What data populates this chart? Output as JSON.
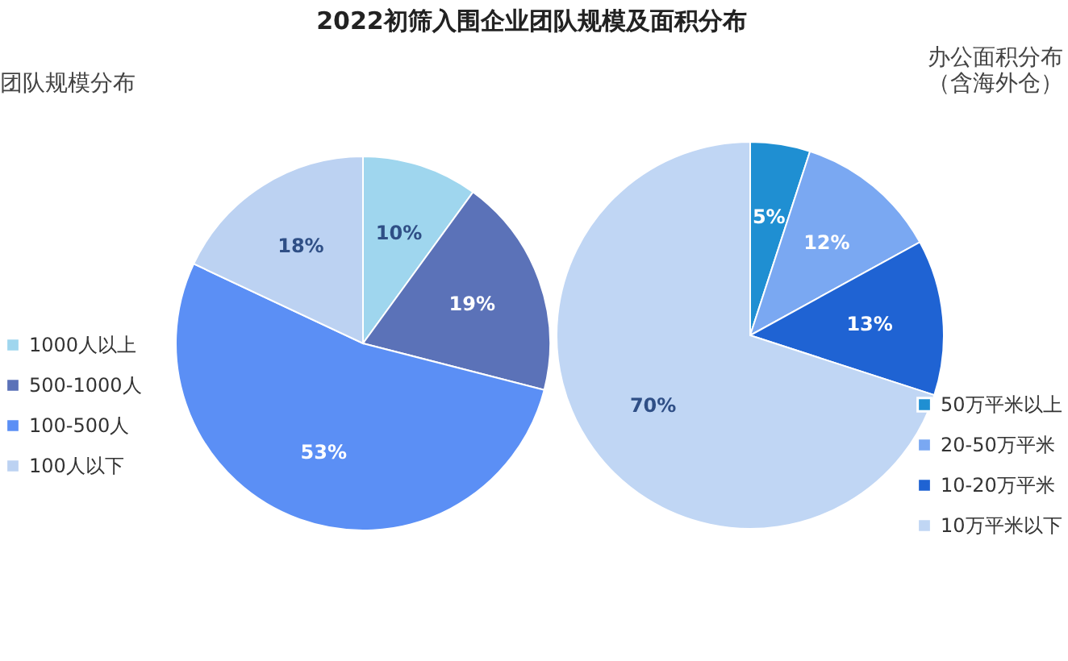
{
  "chart_data": [
    {
      "type": "pie",
      "title": "2022初筛入围企业团队规模及面积分布",
      "subtitle": "团队规模分布",
      "categories": [
        "1000人以上",
        "500-1000人",
        "100-500人",
        "100人以下"
      ],
      "values": [
        10,
        19,
        53,
        18
      ],
      "value_labels": [
        "10%",
        "19%",
        "53%",
        "18%"
      ],
      "colors": [
        "#9fd6ee",
        "#5b72b8",
        "#5b8ff5",
        "#bcd2f2"
      ],
      "legend": "left"
    },
    {
      "type": "pie",
      "subtitle": "办公面积分布（含海外仓）",
      "categories": [
        "50万平米以上",
        "20-50万平米",
        "10-20万平米",
        "10万平米以下"
      ],
      "values": [
        5,
        12,
        13,
        70
      ],
      "value_labels": [
        "5%",
        "12%",
        "13%",
        "70%"
      ],
      "colors": [
        "#1f8fd2",
        "#7aa8f2",
        "#1f63d3",
        "#c0d6f4"
      ],
      "legend": "right"
    }
  ]
}
